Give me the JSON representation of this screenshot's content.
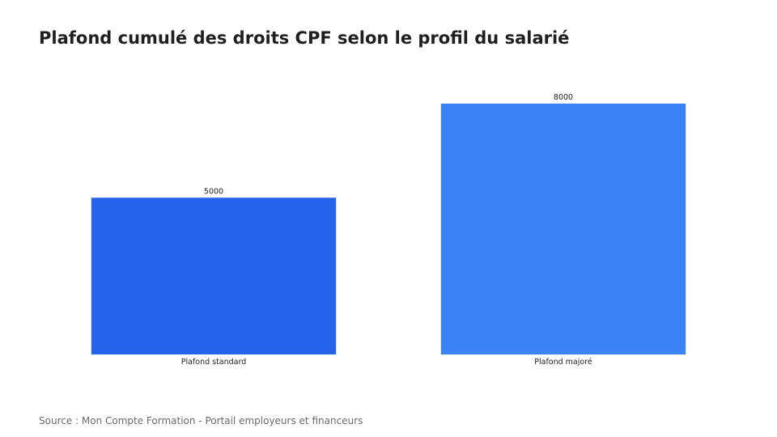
{
  "title": "Plafond cumulé des droits CPF selon le profil du salarié",
  "source": "Source : Mon Compte Formation - Portail employeurs et financeurs",
  "colors": {
    "background": "#ffffff",
    "bar_standard": "#2563eb",
    "bar_majore": "#3b82f6",
    "title": "#1f1f1f",
    "source": "#6b6b6b"
  },
  "chart_data": {
    "type": "bar",
    "categories": [
      "Plafond standard",
      "Plafond majoré"
    ],
    "values": [
      5000,
      8000
    ],
    "data_labels": [
      "5000",
      "8000"
    ],
    "title": "Plafond cumulé des droits CPF selon le profil du salarié",
    "xlabel": "",
    "ylabel": "",
    "ylim": [
      0,
      8000
    ],
    "grid": false,
    "legend": "none",
    "bar_colors": [
      "#2563eb",
      "#3b82f6"
    ]
  }
}
